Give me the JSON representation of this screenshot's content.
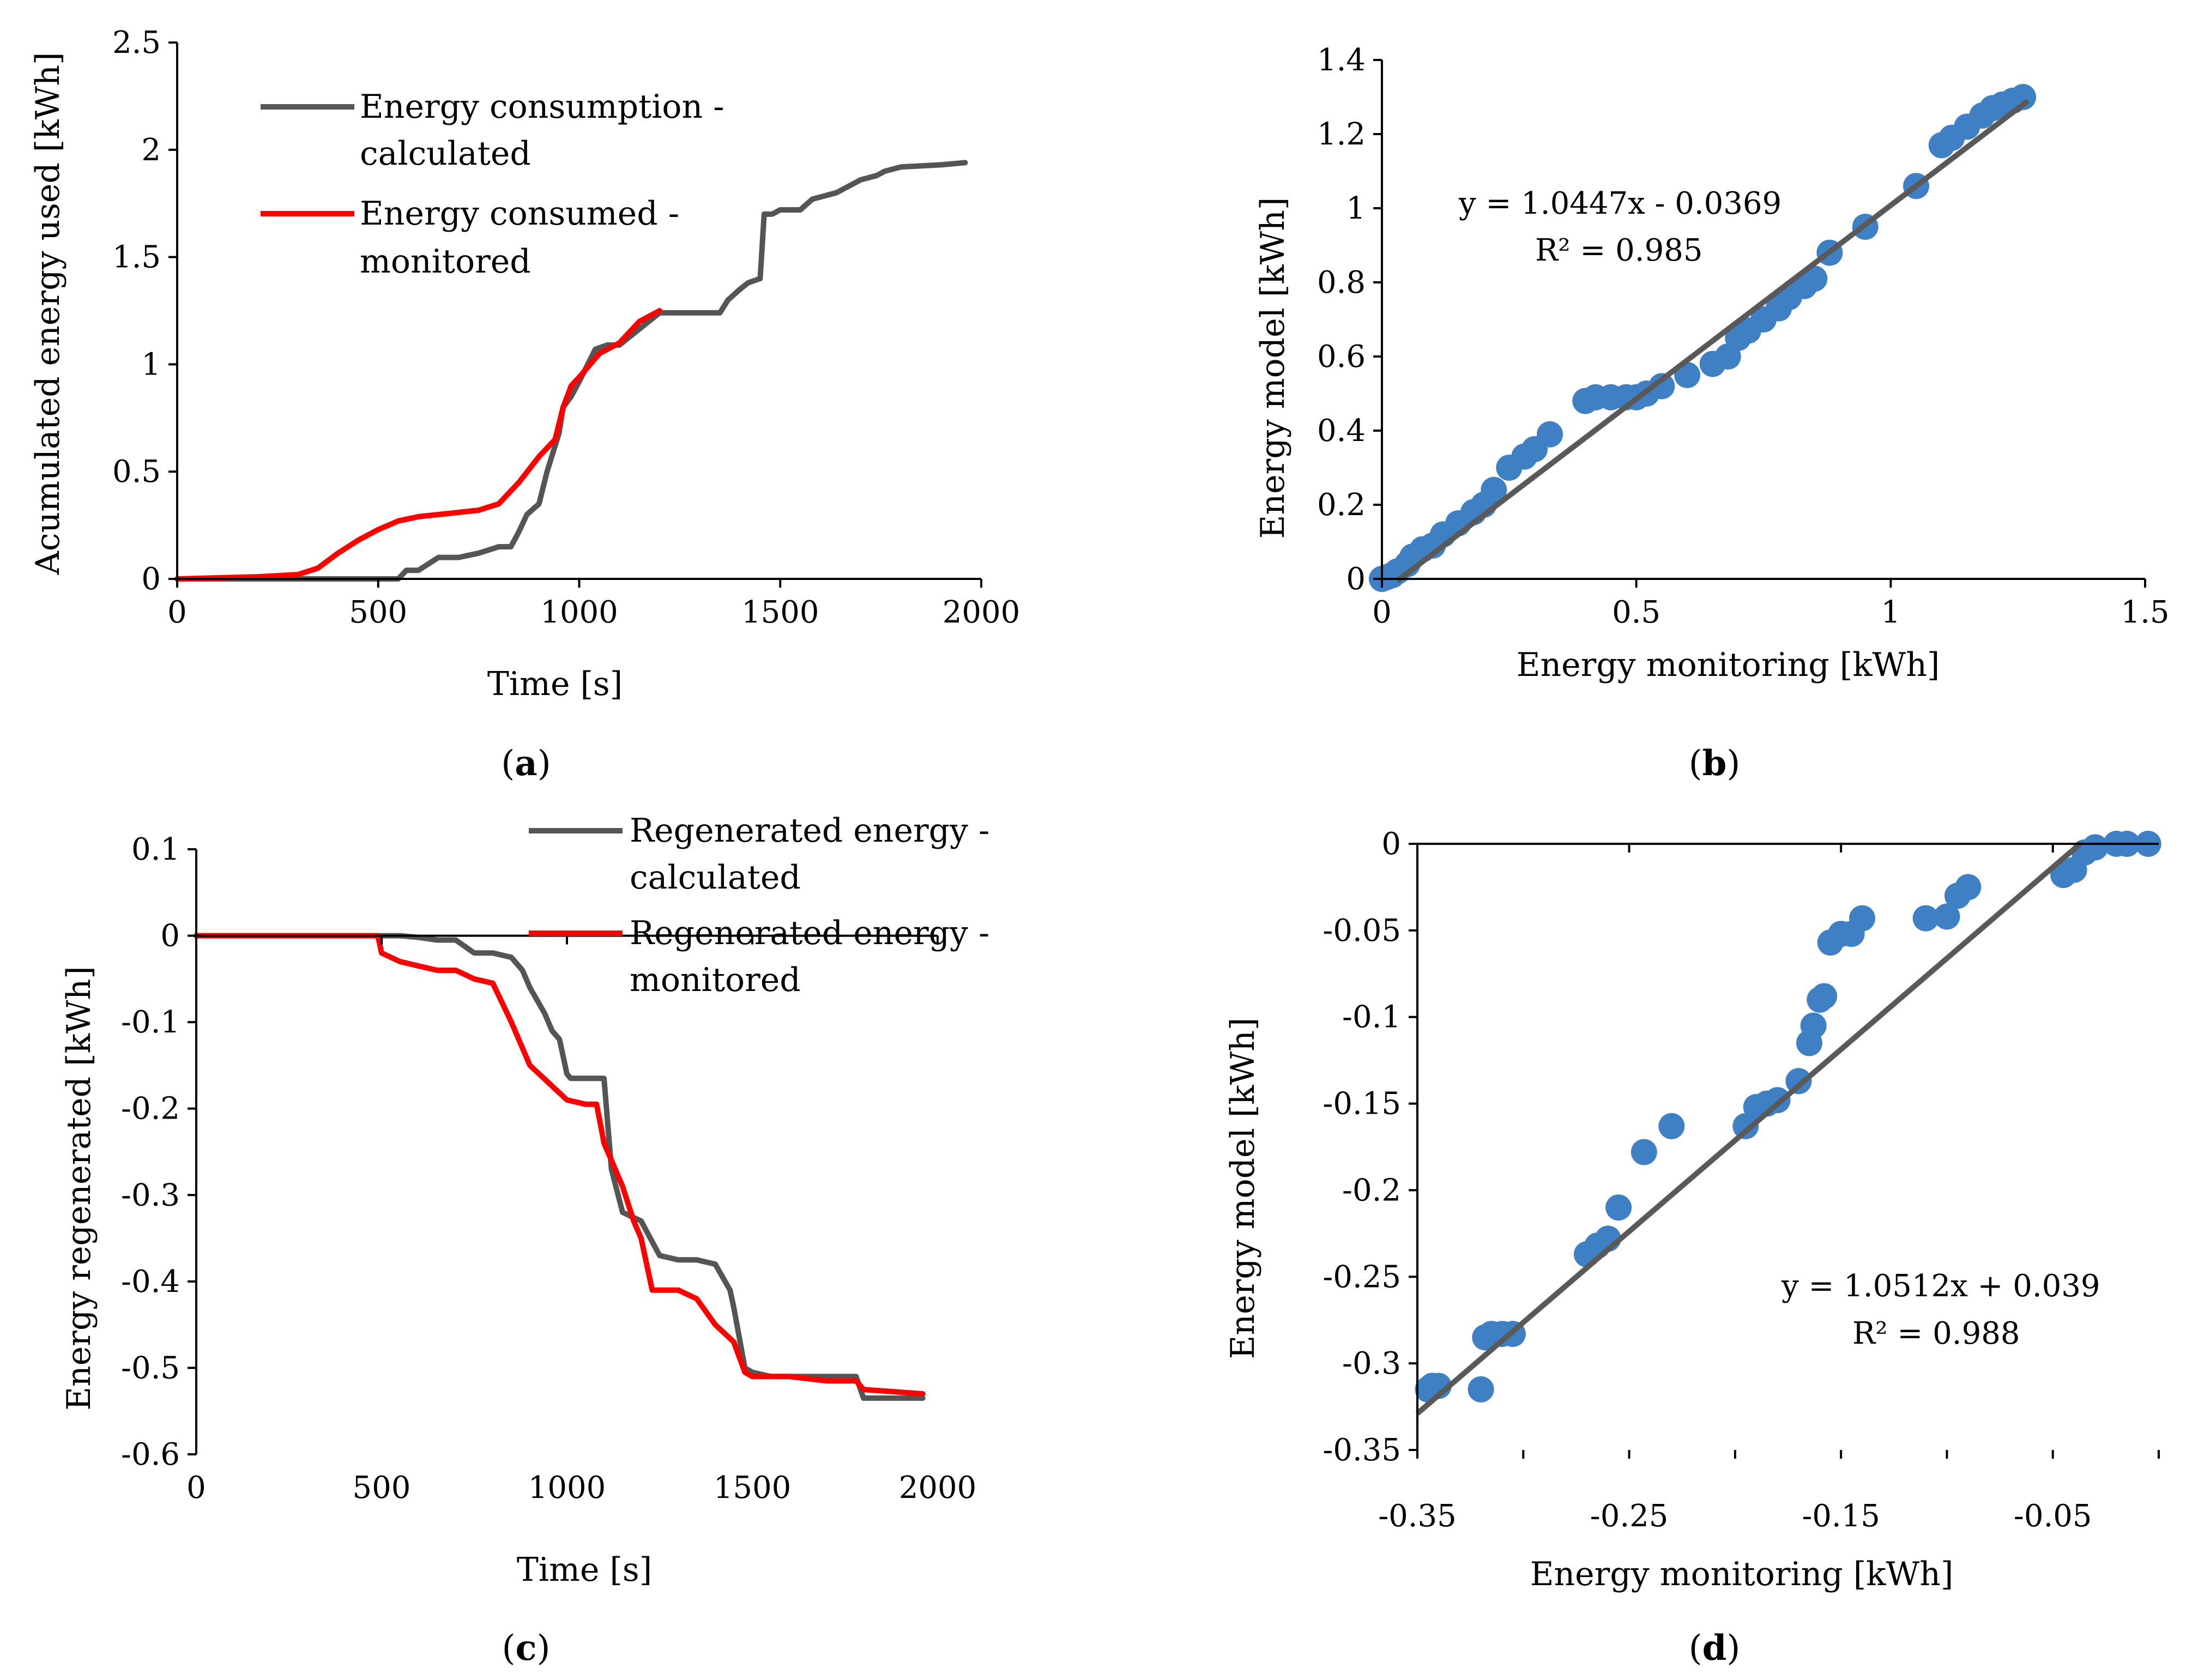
{
  "colors": {
    "calculated": "#555555",
    "monitored": "#ff0000",
    "points": "#3f7fc3",
    "trend": "#595959"
  },
  "chart_data": [
    {
      "panel": "(a)",
      "panel_letter": "a",
      "type": "line",
      "xlabel": "Time [s]",
      "ylabel": "Acumulated energy used [kWh]",
      "xlim": [
        0,
        2000
      ],
      "ylim": [
        0,
        2.5
      ],
      "xticks": [
        "0",
        "500",
        "1000",
        "1500",
        "2000"
      ],
      "yticks": [
        "0",
        "0.5",
        "1",
        "1.5",
        "2",
        "2.5"
      ],
      "legend": [
        "Energy consumption - calculated",
        "Energy consumed - monitored"
      ],
      "legend_lines": [
        [
          "Energy consumption -",
          "calculated"
        ],
        [
          "Energy consumed -",
          "monitored"
        ]
      ],
      "series": [
        {
          "name": "Energy consumption - calculated",
          "color": "#555555",
          "x": [
            0,
            550,
            570,
            600,
            650,
            700,
            750,
            800,
            830,
            850,
            870,
            900,
            920,
            950,
            960,
            980,
            1000,
            1040,
            1070,
            1100,
            1200,
            1350,
            1370,
            1400,
            1420,
            1450,
            1460,
            1480,
            1500,
            1550,
            1580,
            1640,
            1700,
            1740,
            1760,
            1800,
            1900,
            1960
          ],
          "y": [
            0,
            0,
            0.04,
            0.04,
            0.1,
            0.1,
            0.12,
            0.15,
            0.15,
            0.22,
            0.3,
            0.35,
            0.5,
            0.68,
            0.8,
            0.85,
            0.92,
            1.07,
            1.09,
            1.09,
            1.24,
            1.24,
            1.3,
            1.35,
            1.38,
            1.4,
            1.7,
            1.7,
            1.72,
            1.72,
            1.77,
            1.8,
            1.86,
            1.88,
            1.9,
            1.92,
            1.93,
            1.94
          ]
        },
        {
          "name": "Energy consumed - monitored",
          "color": "#ff0000",
          "x": [
            0,
            100,
            200,
            300,
            350,
            400,
            450,
            500,
            550,
            600,
            700,
            750,
            800,
            850,
            900,
            940,
            960,
            980,
            1000,
            1050,
            1100,
            1150,
            1200
          ],
          "y": [
            0,
            0.005,
            0.01,
            0.02,
            0.05,
            0.12,
            0.18,
            0.23,
            0.27,
            0.29,
            0.31,
            0.32,
            0.35,
            0.45,
            0.57,
            0.65,
            0.8,
            0.9,
            0.94,
            1.05,
            1.1,
            1.2,
            1.25
          ]
        }
      ]
    },
    {
      "panel": "(b)",
      "panel_letter": "b",
      "type": "scatter",
      "xlabel": "Energy monitoring [kWh]",
      "ylabel": "Energy model [kWh]",
      "xlim": [
        0,
        1.5
      ],
      "ylim": [
        0,
        1.4
      ],
      "xticks": [
        "0",
        "0.5",
        "1",
        "1.5"
      ],
      "yticks": [
        "0",
        "0.2",
        "0.4",
        "0.6",
        "0.8",
        "1",
        "1.2",
        "1.4"
      ],
      "trendline": {
        "slope": 1.0447,
        "intercept": -0.0369,
        "x_range": [
          0.03,
          1.27
        ]
      },
      "equation": "y = 1.0447x - 0.0369",
      "r2": "R² = 0.985",
      "points": {
        "x": [
          0,
          0.01,
          0.02,
          0.03,
          0.05,
          0.06,
          0.08,
          0.1,
          0.12,
          0.15,
          0.18,
          0.2,
          0.22,
          0.25,
          0.28,
          0.3,
          0.33,
          0.4,
          0.42,
          0.45,
          0.48,
          0.5,
          0.52,
          0.55,
          0.6,
          0.65,
          0.68,
          0.7,
          0.72,
          0.75,
          0.78,
          0.8,
          0.83,
          0.85,
          0.88,
          0.95,
          1.05,
          1.1,
          1.12,
          1.15,
          1.18,
          1.2,
          1.22,
          1.24,
          1.26
        ],
        "y": [
          0,
          0.005,
          0.01,
          0.02,
          0.04,
          0.06,
          0.08,
          0.09,
          0.12,
          0.15,
          0.18,
          0.2,
          0.24,
          0.3,
          0.33,
          0.35,
          0.39,
          0.48,
          0.49,
          0.49,
          0.49,
          0.49,
          0.5,
          0.52,
          0.55,
          0.58,
          0.6,
          0.65,
          0.67,
          0.7,
          0.73,
          0.76,
          0.79,
          0.81,
          0.88,
          0.95,
          1.06,
          1.17,
          1.19,
          1.22,
          1.25,
          1.27,
          1.28,
          1.29,
          1.3
        ]
      }
    },
    {
      "panel": "(c)",
      "panel_letter": "c",
      "type": "line",
      "xlabel": "Time [s]",
      "ylabel": "Energy regenerated [kWh]",
      "xlim": [
        0,
        2000
      ],
      "ylim": [
        -0.6,
        0.1
      ],
      "xticks": [
        "0",
        "500",
        "1000",
        "1500",
        "2000"
      ],
      "yticks": [
        "-0.6",
        "-0.5",
        "-0.4",
        "-0.3",
        "-0.2",
        "-0.1",
        "0",
        "0.1"
      ],
      "legend": [
        "Regenerated energy - calculated",
        "Regenerated energy - monitored"
      ],
      "legend_lines": [
        [
          "Regenerated energy -",
          "calculated"
        ],
        [
          "Regenerated energy -",
          "monitored"
        ]
      ],
      "series": [
        {
          "name": "Regenerated energy - calculated",
          "color": "#555555",
          "x": [
            0,
            550,
            600,
            650,
            700,
            750,
            800,
            850,
            880,
            900,
            940,
            960,
            980,
            1000,
            1010,
            1050,
            1100,
            1120,
            1150,
            1200,
            1250,
            1300,
            1350,
            1400,
            1440,
            1450,
            1480,
            1500,
            1550,
            1600,
            1700,
            1780,
            1800,
            1960
          ],
          "y": [
            0,
            0,
            -0.002,
            -0.005,
            -0.005,
            -0.02,
            -0.02,
            -0.025,
            -0.04,
            -0.06,
            -0.09,
            -0.11,
            -0.12,
            -0.16,
            -0.165,
            -0.165,
            -0.165,
            -0.27,
            -0.32,
            -0.33,
            -0.37,
            -0.375,
            -0.375,
            -0.38,
            -0.41,
            -0.43,
            -0.5,
            -0.505,
            -0.51,
            -0.51,
            -0.51,
            -0.51,
            -0.535,
            -0.535
          ]
        },
        {
          "name": "Regenerated energy - monitored",
          "color": "#ff0000",
          "x": [
            0,
            490,
            500,
            550,
            600,
            650,
            700,
            750,
            800,
            850,
            880,
            900,
            950,
            1000,
            1050,
            1080,
            1100,
            1150,
            1180,
            1200,
            1230,
            1250,
            1300,
            1350,
            1400,
            1450,
            1480,
            1500,
            1550,
            1600,
            1700,
            1780,
            1800,
            1960
          ],
          "y": [
            0,
            0,
            -0.02,
            -0.03,
            -0.035,
            -0.04,
            -0.04,
            -0.05,
            -0.055,
            -0.1,
            -0.13,
            -0.15,
            -0.17,
            -0.19,
            -0.195,
            -0.195,
            -0.24,
            -0.29,
            -0.33,
            -0.35,
            -0.41,
            -0.41,
            -0.41,
            -0.42,
            -0.45,
            -0.47,
            -0.505,
            -0.51,
            -0.51,
            -0.51,
            -0.515,
            -0.515,
            -0.525,
            -0.53
          ]
        }
      ]
    },
    {
      "panel": "(d)",
      "panel_letter": "d",
      "type": "scatter",
      "xlabel": "Energy monitoring [kWh]",
      "ylabel": "Energy model [kWh]",
      "xlim": [
        -0.35,
        0
      ],
      "ylim": [
        -0.35,
        0
      ],
      "xticks": [
        "-0.35",
        "-0.25",
        "-0.15",
        "-0.05"
      ],
      "xtick_values": [
        -0.35,
        -0.25,
        -0.15,
        -0.05
      ],
      "yticks": [
        "-0.35",
        "-0.3",
        "-0.25",
        "-0.2",
        "-0.15",
        "-0.1",
        "-0.05",
        "0"
      ],
      "trendline": {
        "slope": 1.0512,
        "intercept": 0.039,
        "x_range": [
          -0.35,
          -0.037
        ]
      },
      "equation": "y = 1.0512x + 0.039",
      "r2": "R² = 0.988",
      "points": {
        "x": [
          -0.345,
          -0.343,
          -0.34,
          -0.32,
          -0.318,
          -0.315,
          -0.31,
          -0.305,
          -0.27,
          -0.265,
          -0.26,
          -0.255,
          -0.243,
          -0.23,
          -0.195,
          -0.19,
          -0.185,
          -0.18,
          -0.17,
          -0.165,
          -0.163,
          -0.16,
          -0.158,
          -0.155,
          -0.15,
          -0.145,
          -0.14,
          -0.11,
          -0.1,
          -0.095,
          -0.09,
          -0.045,
          -0.04,
          -0.035,
          -0.03,
          -0.02,
          -0.015,
          -0.005
        ],
        "y": [
          -0.315,
          -0.313,
          -0.313,
          -0.315,
          -0.285,
          -0.283,
          -0.283,
          -0.283,
          -0.237,
          -0.232,
          -0.228,
          -0.21,
          -0.178,
          -0.163,
          -0.163,
          -0.152,
          -0.15,
          -0.148,
          -0.137,
          -0.115,
          -0.105,
          -0.09,
          -0.088,
          -0.057,
          -0.052,
          -0.052,
          -0.043,
          -0.043,
          -0.042,
          -0.03,
          -0.025,
          -0.018,
          -0.015,
          -0.005,
          -0.002,
          0,
          0,
          0
        ]
      }
    }
  ]
}
